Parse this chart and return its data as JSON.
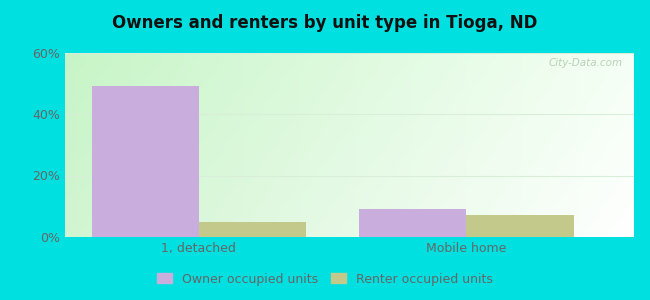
{
  "title": "Owners and renters by unit type in Tioga, ND",
  "categories": [
    "1, detached",
    "Mobile home"
  ],
  "owner_values": [
    49,
    9
  ],
  "renter_values": [
    5,
    7
  ],
  "owner_color": "#c9aedd",
  "renter_color": "#c2c98a",
  "ylim": [
    0,
    60
  ],
  "yticks": [
    0,
    20,
    40,
    60
  ],
  "ytick_labels": [
    "0%",
    "20%",
    "40%",
    "60%"
  ],
  "outer_color": "#00e0e0",
  "watermark": "City-Data.com",
  "legend_owner": "Owner occupied units",
  "legend_renter": "Renter occupied units",
  "bar_width": 0.32,
  "group_positions": [
    0.25,
    1.05
  ],
  "xlim": [
    -0.15,
    1.55
  ],
  "bg_color_left": "#c8e8c8",
  "bg_color_right": "#eefaee",
  "bg_color_top": "#f4fbf4",
  "grid_color": "#d8eed8",
  "tick_color": "#666666",
  "title_color": "#111111"
}
